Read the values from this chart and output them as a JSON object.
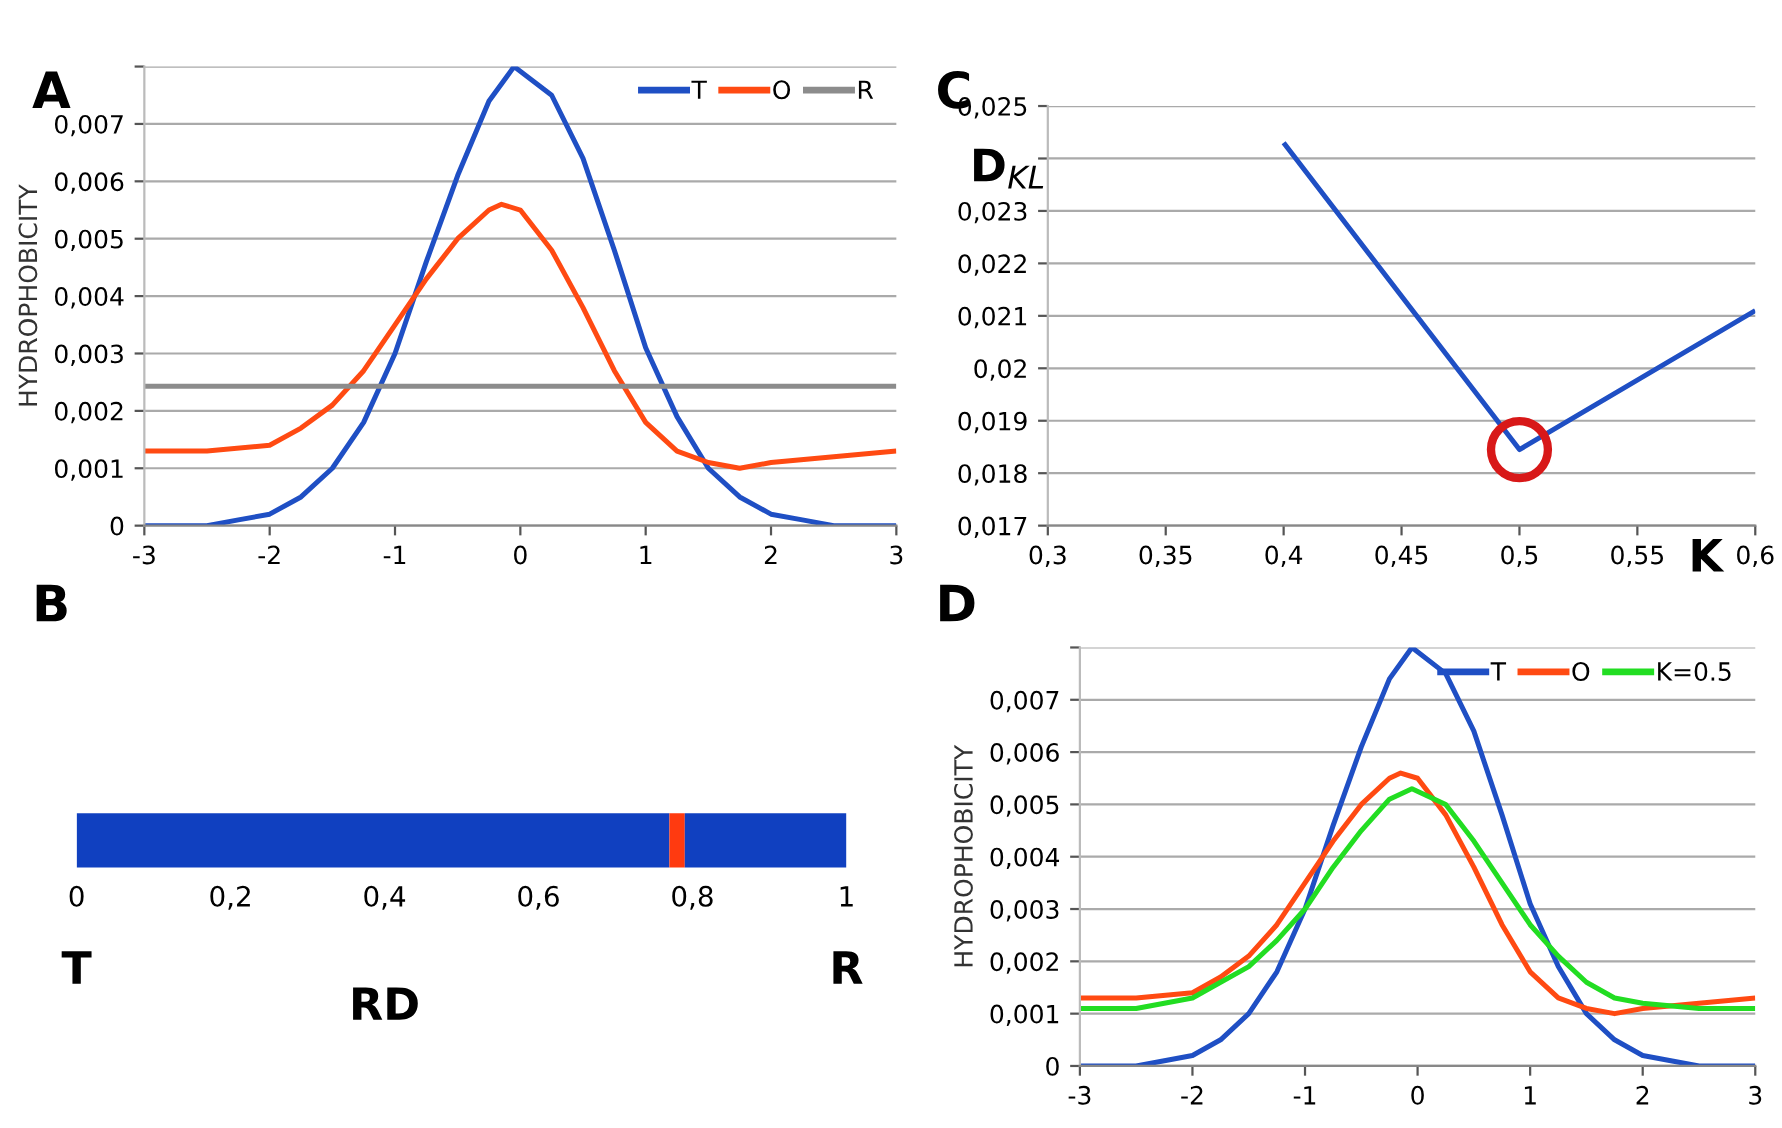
{
  "chart_data": [
    {
      "type": "line",
      "title": "A",
      "ylabel": "HYDROPHOBICITY",
      "legend": "top right",
      "grid": "y",
      "xlim": [
        -3,
        3
      ],
      "xticks": [
        -3,
        -2,
        -1,
        0,
        1,
        2,
        3
      ],
      "ylim": [
        0,
        0.008
      ],
      "yticks": [
        {
          "value": 0,
          "label": "0"
        },
        {
          "value": 0.001,
          "label": "0,001"
        },
        {
          "value": 0.002,
          "label": "0,002"
        },
        {
          "value": 0.003,
          "label": "0,003"
        },
        {
          "value": 0.004,
          "label": "0,004"
        },
        {
          "value": 0.005,
          "label": "0,005"
        },
        {
          "value": 0.006,
          "label": "0,006"
        },
        {
          "value": 0.007,
          "label": "0,007"
        },
        {
          "value": 0.008,
          "label": null
        }
      ],
      "series": [
        {
          "name": "T",
          "color": "#1f4fc4",
          "x": [
            -3,
            -2.75,
            -2.5,
            -2.25,
            -2,
            -1.75,
            -1.5,
            -1.25,
            -1,
            -0.75,
            -0.5,
            -0.25,
            -0.05,
            0.25,
            0.5,
            0.75,
            1,
            1.25,
            1.5,
            1.75,
            2,
            2.25,
            2.5,
            2.75,
            3
          ],
          "values": [
            0,
            0,
            0,
            0.0001,
            0.0002,
            0.0005,
            0.001,
            0.0018,
            0.003,
            0.0046,
            0.0061,
            0.0074,
            0.008,
            0.0075,
            0.0064,
            0.0048,
            0.0031,
            0.0019,
            0.001,
            0.0005,
            0.0002,
            0.0001,
            0,
            0,
            0
          ]
        },
        {
          "name": "O",
          "color": "#ff4a12",
          "x": [
            -3,
            -2.5,
            -2,
            -1.75,
            -1.5,
            -1.25,
            -1,
            -0.75,
            -0.5,
            -0.25,
            -0.15,
            0,
            0.25,
            0.5,
            0.75,
            1,
            1.25,
            1.5,
            1.75,
            2,
            2.5,
            3
          ],
          "values": [
            0.0013,
            0.0013,
            0.0014,
            0.0017,
            0.0021,
            0.0027,
            0.0035,
            0.0043,
            0.005,
            0.0055,
            0.0056,
            0.0055,
            0.0048,
            0.0038,
            0.0027,
            0.0018,
            0.0013,
            0.0011,
            0.001,
            0.0011,
            0.0012,
            0.0013
          ]
        },
        {
          "name": "R",
          "color": "#8c8c8c",
          "x": [
            -3,
            3
          ],
          "values": [
            0.00243,
            0.00243
          ]
        }
      ]
    },
    {
      "type": "line",
      "title": "C",
      "ylabel": "D$_{KL}$",
      "xlabel": "K",
      "grid": "y",
      "xlim": [
        0.3,
        0.6
      ],
      "xticks": [
        {
          "value": 0.3,
          "label": "0,3"
        },
        {
          "value": 0.35,
          "label": "0,35"
        },
        {
          "value": 0.4,
          "label": "0,4"
        },
        {
          "value": 0.45,
          "label": "0,45"
        },
        {
          "value": 0.5,
          "label": "0,5"
        },
        {
          "value": 0.55,
          "label": "0,55"
        },
        {
          "value": 0.6,
          "label": "0,6"
        }
      ],
      "ylim": [
        0.017,
        0.025
      ],
      "yticks": [
        {
          "value": 0.017,
          "label": "0,017"
        },
        {
          "value": 0.018,
          "label": "0,018"
        },
        {
          "value": 0.019,
          "label": "0,019"
        },
        {
          "value": 0.02,
          "label": "0,02"
        },
        {
          "value": 0.021,
          "label": "0,021"
        },
        {
          "value": 0.022,
          "label": "0,022"
        },
        {
          "value": 0.023,
          "label": "0,023"
        },
        {
          "value": 0.024,
          "label": null
        },
        {
          "value": 0.025,
          "label": "0,025"
        }
      ],
      "series": [
        {
          "color": "#1f4fc4",
          "x": [
            0.4,
            0.5,
            0.6
          ],
          "values": [
            0.0243,
            0.01845,
            0.0211
          ]
        },
        {
          "type": "scatter",
          "marker": "circle",
          "color": "#d81818",
          "x": [
            0.5
          ],
          "values": [
            0.01845
          ]
        }
      ]
    },
    {
      "type": "bar",
      "title": "B",
      "xlabel": "RD",
      "orientation": "horizontal",
      "stacked": true,
      "tick_labels": "x",
      "categories": [
        null
      ],
      "xlim": [
        0,
        1
      ],
      "xticks": [
        {
          "value": 0,
          "label": "0"
        },
        {
          "value": 0.2,
          "label": "0,2"
        },
        {
          "value": 0.4,
          "label": "0,4"
        },
        {
          "value": 0.6,
          "label": "0,6"
        },
        {
          "value": 0.8,
          "label": "0,8"
        },
        {
          "value": 1,
          "label": "1"
        }
      ],
      "annotations": [
        "T",
        "R"
      ],
      "series": [
        {
          "color": "#1040c0",
          "values": [
            0.77
          ]
        },
        {
          "color": "#ff3a10",
          "values": [
            0.02
          ]
        },
        {
          "color": "#1040c0",
          "values": [
            0.21
          ]
        }
      ]
    },
    {
      "type": "line",
      "title": "D",
      "ylabel": "HYDROPHOBICITY",
      "legend": "top right",
      "grid": "y",
      "xlim": [
        -3,
        3
      ],
      "xticks": [
        -3,
        -2,
        -1,
        0,
        1,
        2,
        3
      ],
      "ylim": [
        0,
        0.008
      ],
      "yticks": [
        {
          "value": 0,
          "label": "0"
        },
        {
          "value": 0.001,
          "label": "0,001"
        },
        {
          "value": 0.002,
          "label": "0,002"
        },
        {
          "value": 0.003,
          "label": "0,003"
        },
        {
          "value": 0.004,
          "label": "0,004"
        },
        {
          "value": 0.005,
          "label": "0,005"
        },
        {
          "value": 0.006,
          "label": "0,006"
        },
        {
          "value": 0.007,
          "label": "0,007"
        },
        {
          "value": 0.008,
          "label": null
        }
      ],
      "series": [
        {
          "name": "T",
          "color": "#1f4fc4",
          "x": [
            -3,
            -2.75,
            -2.5,
            -2.25,
            -2,
            -1.75,
            -1.5,
            -1.25,
            -1,
            -0.75,
            -0.5,
            -0.25,
            -0.05,
            0.25,
            0.5,
            0.75,
            1,
            1.25,
            1.5,
            1.75,
            2,
            2.25,
            2.5,
            2.75,
            3
          ],
          "values": [
            0,
            0,
            0,
            0.0001,
            0.0002,
            0.0005,
            0.001,
            0.0018,
            0.003,
            0.0046,
            0.0061,
            0.0074,
            0.008,
            0.0075,
            0.0064,
            0.0048,
            0.0031,
            0.0019,
            0.001,
            0.0005,
            0.0002,
            0.0001,
            0,
            0,
            0
          ]
        },
        {
          "name": "O",
          "color": "#ff4a12",
          "x": [
            -3,
            -2.5,
            -2,
            -1.75,
            -1.5,
            -1.25,
            -1,
            -0.75,
            -0.5,
            -0.25,
            -0.15,
            0,
            0.25,
            0.5,
            0.75,
            1,
            1.25,
            1.5,
            1.75,
            2,
            2.5,
            3
          ],
          "values": [
            0.0013,
            0.0013,
            0.0014,
            0.0017,
            0.0021,
            0.0027,
            0.0035,
            0.0043,
            0.005,
            0.0055,
            0.0056,
            0.0055,
            0.0048,
            0.0038,
            0.0027,
            0.0018,
            0.0013,
            0.0011,
            0.001,
            0.0011,
            0.0012,
            0.0013
          ]
        },
        {
          "name": "K=0.5",
          "color": "#22dd22",
          "x": [
            -3,
            -2.5,
            -2,
            -1.75,
            -1.5,
            -1.25,
            -1,
            -0.75,
            -0.5,
            -0.25,
            -0.05,
            0.25,
            0.5,
            0.75,
            1,
            1.25,
            1.5,
            1.75,
            2,
            2.5,
            3
          ],
          "values": [
            0.0011,
            0.0011,
            0.0013,
            0.0016,
            0.0019,
            0.0024,
            0.003,
            0.0038,
            0.0045,
            0.0051,
            0.0053,
            0.005,
            0.0043,
            0.0035,
            0.0027,
            0.0021,
            0.0016,
            0.0013,
            0.0012,
            0.0011,
            0.0011
          ]
        }
      ]
    }
  ]
}
